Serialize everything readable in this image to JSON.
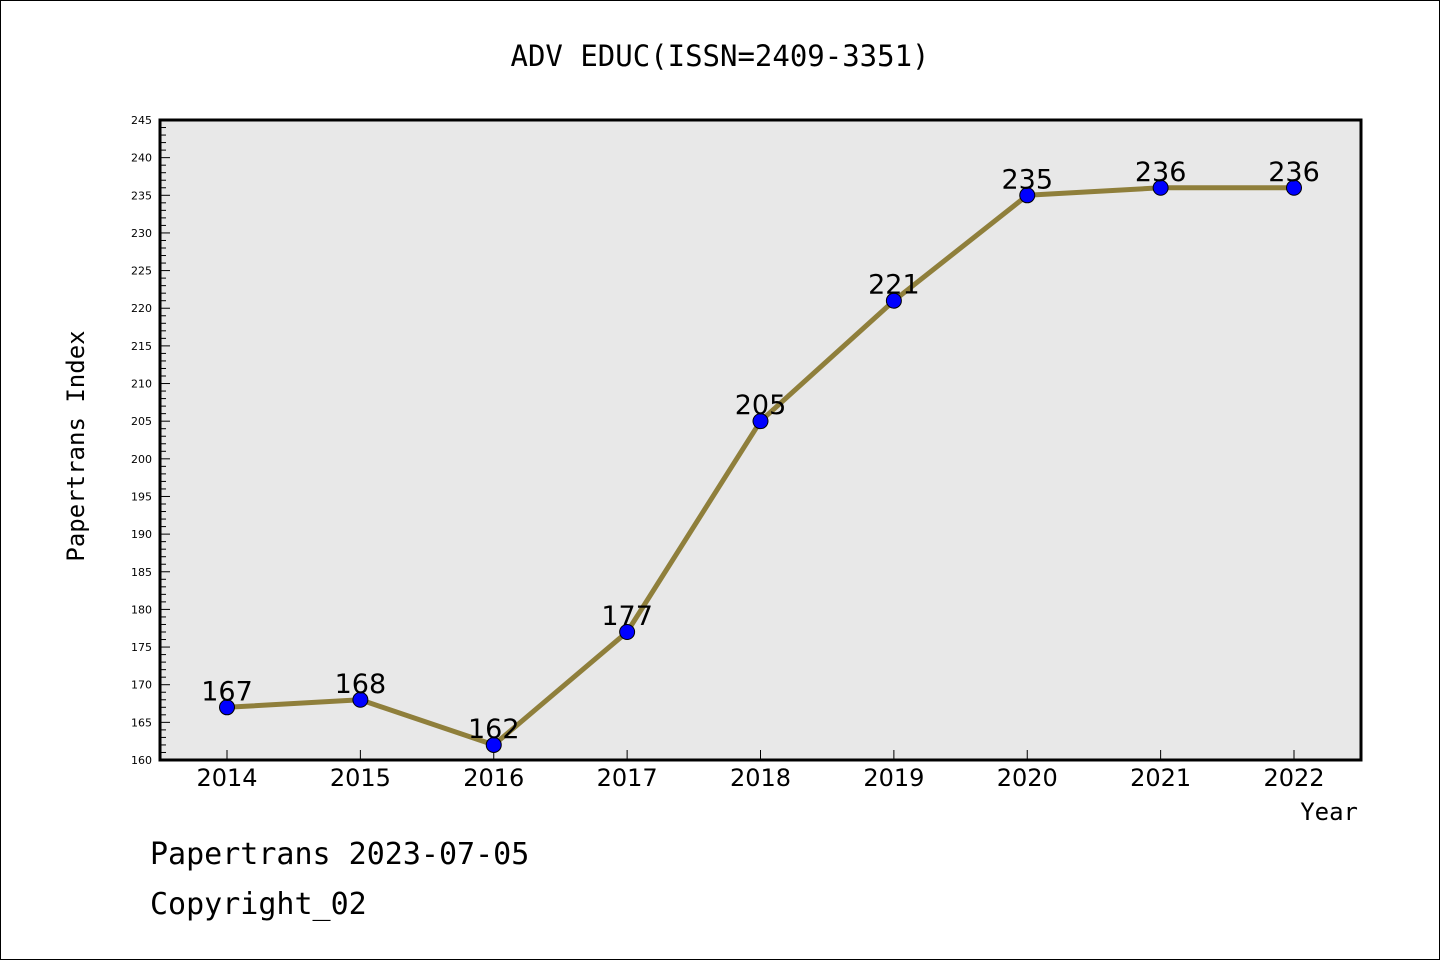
{
  "chart_data": {
    "type": "line",
    "title": "ADV EDUC(ISSN=2409-3351)",
    "xlabel": "Year",
    "ylabel": "Papertrans Index",
    "x": [
      "2014",
      "2015",
      "2016",
      "2017",
      "2018",
      "2019",
      "2020",
      "2021",
      "2022"
    ],
    "values": [
      167,
      168,
      162,
      177,
      205,
      221,
      235,
      236,
      236
    ],
    "data_labels": [
      "167",
      "168",
      "162",
      "177",
      "205",
      "221",
      "235",
      "236",
      "236"
    ],
    "ylim": [
      160,
      245
    ],
    "yticks": [
      "160",
      "165",
      "170",
      "175",
      "180",
      "185",
      "190",
      "195",
      "200",
      "205",
      "210",
      "215",
      "220",
      "225",
      "230",
      "235",
      "240",
      "245"
    ],
    "grid": false,
    "line_color": "#8f7f3b",
    "marker_color": "#0000ff",
    "plot_background": "#e8e8e8"
  },
  "footer": {
    "line1": "Papertrans 2023-07-05",
    "line2": "Copyright_02"
  }
}
